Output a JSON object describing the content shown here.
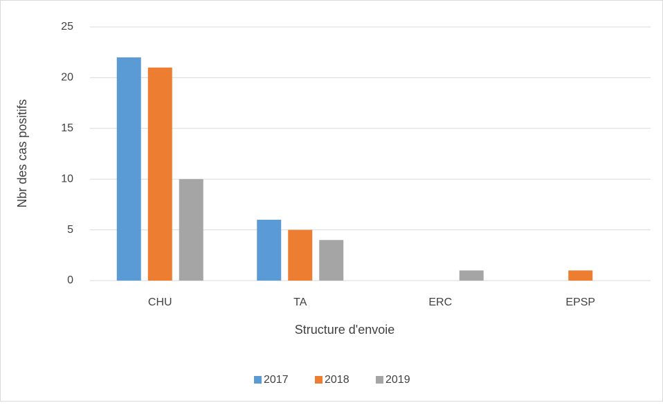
{
  "chart_data": {
    "type": "bar",
    "categories": [
      "CHU",
      "TA",
      "ERC",
      "EPSP"
    ],
    "series": [
      {
        "name": "2017",
        "color": "#5b9bd5",
        "values": [
          22,
          6,
          0,
          0
        ]
      },
      {
        "name": "2018",
        "color": "#ed7d31",
        "values": [
          21,
          5,
          0,
          1
        ]
      },
      {
        "name": "2019",
        "color": "#a5a5a5",
        "values": [
          10,
          4,
          1,
          0
        ]
      }
    ],
    "xlabel": "Structure d'envoie",
    "ylabel": "Nbr des cas positifs",
    "ylim": [
      0,
      25
    ],
    "yticks": [
      0,
      5,
      10,
      15,
      20,
      25
    ],
    "grid": true,
    "legend": "bottom"
  }
}
